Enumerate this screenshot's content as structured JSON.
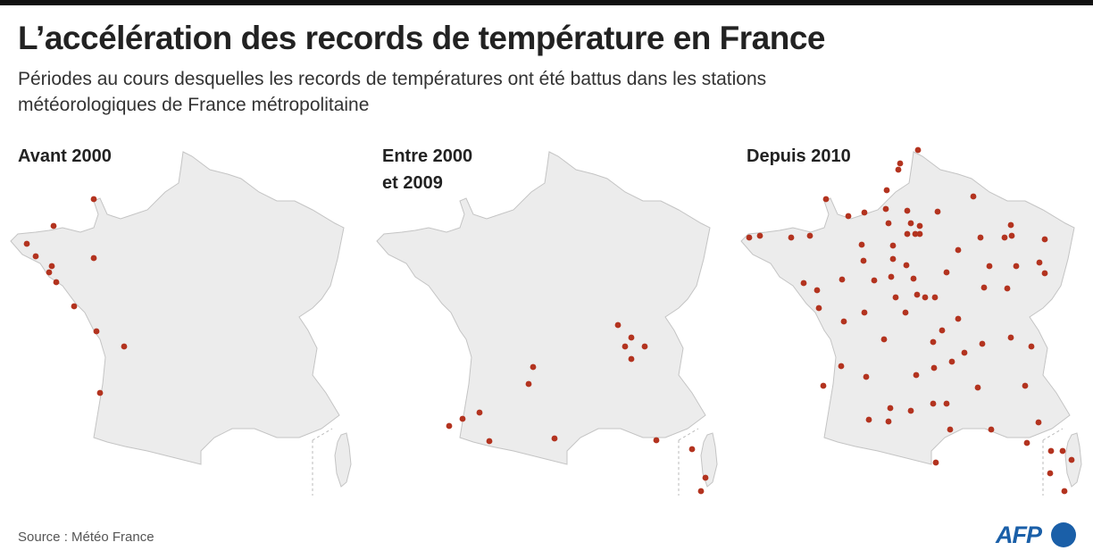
{
  "header": {
    "title": "L’accélération des records de température en France",
    "subtitle": "Périodes au cours desquelles les records de températures ont été battus dans les stations météorologiques de France métropolitaine"
  },
  "panels": [
    {
      "title_lines": [
        "Avant 2000"
      ]
    },
    {
      "title_lines": [
        "Entre 2000",
        "et 2009"
      ]
    },
    {
      "title_lines": [
        "Depuis 2010"
      ]
    }
  ],
  "footer": {
    "source": "Source : Météo France",
    "logo": "AFP"
  }
}
